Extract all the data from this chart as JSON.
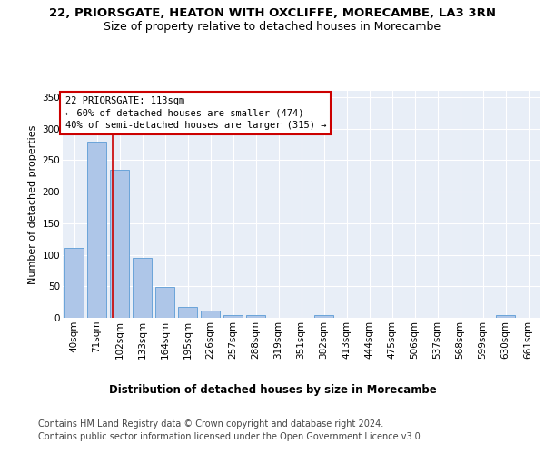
{
  "title1": "22, PRIORSGATE, HEATON WITH OXCLIFFE, MORECAMBE, LA3 3RN",
  "title2": "Size of property relative to detached houses in Morecambe",
  "xlabel": "Distribution of detached houses by size in Morecambe",
  "ylabel": "Number of detached properties",
  "categories": [
    "40sqm",
    "71sqm",
    "102sqm",
    "133sqm",
    "164sqm",
    "195sqm",
    "226sqm",
    "257sqm",
    "288sqm",
    "319sqm",
    "351sqm",
    "382sqm",
    "413sqm",
    "444sqm",
    "475sqm",
    "506sqm",
    "537sqm",
    "568sqm",
    "599sqm",
    "630sqm",
    "661sqm"
  ],
  "values": [
    111,
    280,
    235,
    95,
    49,
    18,
    11,
    5,
    4,
    0,
    0,
    4,
    0,
    0,
    0,
    0,
    0,
    0,
    0,
    4,
    0
  ],
  "bar_color": "#aec6e8",
  "bar_edgecolor": "#5b9bd5",
  "vline_x": 1.7,
  "vline_color": "#cc0000",
  "annotation_text": "22 PRIORSGATE: 113sqm\n← 60% of detached houses are smaller (474)\n40% of semi-detached houses are larger (315) →",
  "annotation_box_color": "#ffffff",
  "annotation_box_edgecolor": "#cc0000",
  "ylim": [
    0,
    360
  ],
  "yticks": [
    0,
    50,
    100,
    150,
    200,
    250,
    300,
    350
  ],
  "footer1": "Contains HM Land Registry data © Crown copyright and database right 2024.",
  "footer2": "Contains public sector information licensed under the Open Government Licence v3.0.",
  "plot_bg_color": "#e8eef7",
  "fig_bg_color": "#ffffff",
  "grid_color": "#ffffff",
  "title1_fontsize": 9.5,
  "title2_fontsize": 9,
  "xlabel_fontsize": 8.5,
  "ylabel_fontsize": 8,
  "tick_fontsize": 7.5,
  "annotation_fontsize": 7.5,
  "footer_fontsize": 7
}
